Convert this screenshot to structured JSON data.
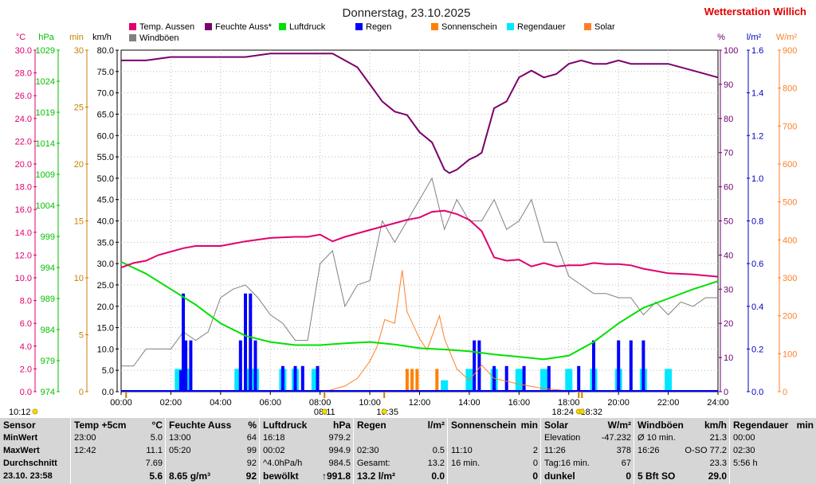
{
  "header": {
    "title": "Donnerstag, 23.10.2025",
    "brand": "Wetterstation Willich"
  },
  "legend": [
    {
      "name": "Temp. Aussen",
      "color": "#e0006e"
    },
    {
      "name": "Feuchte Auss*",
      "color": "#7a006e"
    },
    {
      "name": "Luftdruck",
      "color": "#00e000"
    },
    {
      "name": "Regen",
      "color": "#0000ff"
    },
    {
      "name": "Sonnenschein",
      "color": "#ff8000"
    },
    {
      "name": "Regendauer",
      "color": "#00e8ff"
    },
    {
      "name": "Solar",
      "color": "#ff7f27"
    },
    {
      "name": "Windböen",
      "color": "#808080"
    }
  ],
  "axes_left": [
    {
      "unit": "°C",
      "color": "#e0006e",
      "ticks": [
        "0.0",
        "2.0",
        "4.0",
        "6.0",
        "8.0",
        "10.0",
        "12.0",
        "14.0",
        "16.0",
        "18.0",
        "20.0",
        "22.0",
        "24.0",
        "26.0",
        "28.0",
        "30.0"
      ],
      "min": 0,
      "max": 30
    },
    {
      "unit": "hPa",
      "color": "#00c000",
      "ticks": [
        "974",
        "979",
        "984",
        "989",
        "994",
        "999",
        "1004",
        "1009",
        "1014",
        "1019",
        "1024",
        "1029"
      ],
      "min": 974,
      "max": 1029
    },
    {
      "unit": "min",
      "color": "#c88000",
      "ticks": [
        "0",
        "5",
        "10",
        "15",
        "20",
        "25",
        "30"
      ],
      "min": 0,
      "max": 30
    },
    {
      "unit": "km/h",
      "color": "#000000",
      "ticks": [
        "0.0",
        "5.0",
        "10.0",
        "15.0",
        "20.0",
        "25.0",
        "30.0",
        "35.0",
        "40.0",
        "45.0",
        "50.0",
        "55.0",
        "60.0",
        "65.0",
        "70.0",
        "75.0",
        "80.0"
      ],
      "min": 0,
      "max": 80
    }
  ],
  "axes_right": [
    {
      "unit": "%",
      "color": "#6a006a",
      "ticks": [
        "0",
        "10",
        "20",
        "30",
        "40",
        "50",
        "60",
        "70",
        "80",
        "90",
        "100"
      ],
      "min": 0,
      "max": 100
    },
    {
      "unit": "l/m²",
      "color": "#0000c0",
      "ticks": [
        "0.0",
        "0.2",
        "0.4",
        "0.6",
        "0.8",
        "1.0",
        "1.2",
        "1.4",
        "1.6"
      ],
      "min": 0,
      "max": 1.6
    },
    {
      "unit": "W/m²",
      "color": "#ff7f27",
      "ticks": [
        "0",
        "100",
        "200",
        "300",
        "400",
        "500",
        "600",
        "700",
        "800",
        "900"
      ],
      "min": 0,
      "max": 900
    }
  ],
  "time_ticks": [
    "00:00",
    "02:00",
    "04:00",
    "06:00",
    "08:00",
    "10:00",
    "12:00",
    "14:00",
    "16:00",
    "18:00",
    "20:00",
    "22:00",
    "24:00"
  ],
  "time_markers": [
    {
      "text": "10:12",
      "h": 0.2
    },
    {
      "text": "08:11",
      "h": 8.18
    },
    {
      "text": "10:35",
      "h": 10.58
    },
    {
      "text": "18:24",
      "h": 18.4
    },
    {
      "text": "18:32",
      "h": 18.53
    }
  ],
  "chart_data": {
    "type": "line",
    "title": "Donnerstag, 23.10.2025",
    "x_unit": "hour of day",
    "xlim": [
      0,
      24
    ],
    "series": [
      {
        "name": "Temp. Aussen",
        "unit": "°C",
        "points": [
          [
            0,
            10.9
          ],
          [
            0.5,
            11.3
          ],
          [
            1,
            11.5
          ],
          [
            1.5,
            12.0
          ],
          [
            2,
            12.3
          ],
          [
            2.5,
            12.6
          ],
          [
            3,
            12.8
          ],
          [
            4,
            12.8
          ],
          [
            4.5,
            13.0
          ],
          [
            5,
            13.2
          ],
          [
            6,
            13.5
          ],
          [
            7,
            13.6
          ],
          [
            7.5,
            13.6
          ],
          [
            8,
            13.8
          ],
          [
            8.5,
            13.2
          ],
          [
            9,
            13.6
          ],
          [
            10,
            14.2
          ],
          [
            11,
            14.8
          ],
          [
            11.5,
            15.1
          ],
          [
            12,
            15.3
          ],
          [
            12.5,
            15.8
          ],
          [
            13,
            15.9
          ],
          [
            13.5,
            15.6
          ],
          [
            14,
            15.1
          ],
          [
            14.5,
            14.1
          ],
          [
            15,
            11.8
          ],
          [
            15.5,
            11.5
          ],
          [
            16,
            11.6
          ],
          [
            16.5,
            11.0
          ],
          [
            17,
            11.3
          ],
          [
            17.5,
            11.0
          ],
          [
            18,
            11.1
          ],
          [
            18.5,
            11.1
          ],
          [
            19,
            11.3
          ],
          [
            19.5,
            11.2
          ],
          [
            20,
            11.2
          ],
          [
            20.5,
            11.1
          ],
          [
            21,
            10.8
          ],
          [
            21.5,
            10.6
          ],
          [
            22,
            10.4
          ],
          [
            23,
            10.3
          ],
          [
            24,
            10.1
          ]
        ]
      },
      {
        "name": "Feuchte Auss*",
        "unit": "%",
        "points": [
          [
            0,
            97
          ],
          [
            1,
            97
          ],
          [
            2,
            98
          ],
          [
            3,
            98
          ],
          [
            4,
            98
          ],
          [
            5,
            98
          ],
          [
            6,
            99
          ],
          [
            7,
            99
          ],
          [
            8,
            99
          ],
          [
            8.5,
            99
          ],
          [
            9,
            97
          ],
          [
            9.5,
            95
          ],
          [
            10,
            90
          ],
          [
            10.5,
            85
          ],
          [
            11,
            82
          ],
          [
            11.5,
            81
          ],
          [
            12,
            76
          ],
          [
            12.5,
            73
          ],
          [
            13,
            65
          ],
          [
            13.2,
            64
          ],
          [
            13.5,
            65
          ],
          [
            14,
            68
          ],
          [
            14.3,
            69
          ],
          [
            14.5,
            70
          ],
          [
            15,
            83
          ],
          [
            15.5,
            85
          ],
          [
            16,
            92
          ],
          [
            16.5,
            94
          ],
          [
            17,
            92
          ],
          [
            17.5,
            93
          ],
          [
            18,
            96
          ],
          [
            18.5,
            97
          ],
          [
            19,
            96
          ],
          [
            19.5,
            96
          ],
          [
            20,
            97
          ],
          [
            20.5,
            96
          ],
          [
            21,
            96
          ],
          [
            22,
            96
          ],
          [
            23,
            94
          ],
          [
            24,
            92
          ]
        ]
      },
      {
        "name": "Luftdruck",
        "unit": "hPa",
        "points": [
          [
            0,
            994.9
          ],
          [
            1,
            993.0
          ],
          [
            2,
            990.5
          ],
          [
            3,
            988.0
          ],
          [
            4,
            985.0
          ],
          [
            5,
            983.0
          ],
          [
            6,
            982.0
          ],
          [
            7,
            981.5
          ],
          [
            8,
            981.5
          ],
          [
            9,
            981.8
          ],
          [
            10,
            982.0
          ],
          [
            11,
            981.6
          ],
          [
            12,
            981.0
          ],
          [
            13,
            980.8
          ],
          [
            14,
            980.5
          ],
          [
            15,
            980.0
          ],
          [
            16,
            979.6
          ],
          [
            17,
            979.2
          ],
          [
            18,
            979.8
          ],
          [
            19,
            982.0
          ],
          [
            20,
            985.0
          ],
          [
            21,
            987.5
          ],
          [
            22,
            989.0
          ],
          [
            23,
            990.5
          ],
          [
            24,
            991.8
          ]
        ]
      },
      {
        "name": "Regen",
        "unit": "l/m²",
        "type": "bar",
        "points": [
          [
            2.4,
            0.1
          ],
          [
            2.5,
            0.46
          ],
          [
            2.6,
            0.24
          ],
          [
            2.8,
            0.24
          ],
          [
            4.8,
            0.24
          ],
          [
            5.0,
            0.46
          ],
          [
            5.2,
            0.46
          ],
          [
            5.4,
            0.24
          ],
          [
            6.5,
            0.12
          ],
          [
            7.0,
            0.12
          ],
          [
            7.3,
            0.12
          ],
          [
            7.9,
            0.12
          ],
          [
            14.2,
            0.24
          ],
          [
            14.4,
            0.24
          ],
          [
            15.0,
            0.12
          ],
          [
            15.5,
            0.12
          ],
          [
            16.2,
            0.12
          ],
          [
            17.2,
            0.12
          ],
          [
            18.4,
            0.12
          ],
          [
            19.0,
            0.24
          ],
          [
            20.0,
            0.24
          ],
          [
            20.5,
            0.24
          ],
          [
            21.0,
            0.24
          ]
        ]
      },
      {
        "name": "Sonnenschein",
        "unit": "min",
        "type": "bar",
        "points": [
          [
            11.5,
            2
          ],
          [
            11.7,
            2
          ],
          [
            11.9,
            2
          ],
          [
            12.7,
            2
          ],
          [
            15.0,
            1
          ]
        ]
      },
      {
        "name": "Regendauer",
        "unit": "min",
        "type": "bar",
        "points": [
          [
            2.3,
            2
          ],
          [
            2.7,
            2
          ],
          [
            4.7,
            2
          ],
          [
            5.2,
            2
          ],
          [
            5.4,
            2
          ],
          [
            6.5,
            2
          ],
          [
            7.0,
            2
          ],
          [
            7.8,
            2
          ],
          [
            13.0,
            1
          ],
          [
            14.0,
            2
          ],
          [
            15.0,
            2
          ],
          [
            16.0,
            2
          ],
          [
            17.0,
            2
          ],
          [
            18.0,
            2
          ],
          [
            19.0,
            2
          ],
          [
            20.0,
            2
          ],
          [
            21.0,
            2
          ],
          [
            22.0,
            2
          ]
        ]
      },
      {
        "name": "Solar",
        "unit": "W/m²",
        "points": [
          [
            8.2,
            0
          ],
          [
            9,
            15
          ],
          [
            9.5,
            35
          ],
          [
            10,
            80
          ],
          [
            10.3,
            120
          ],
          [
            10.6,
            190
          ],
          [
            11,
            180
          ],
          [
            11.3,
            320
          ],
          [
            11.5,
            210
          ],
          [
            12,
            140
          ],
          [
            12.3,
            110
          ],
          [
            12.8,
            200
          ],
          [
            13,
            140
          ],
          [
            13.5,
            60
          ],
          [
            14,
            30
          ],
          [
            14.5,
            70
          ],
          [
            15,
            35
          ],
          [
            16,
            20
          ],
          [
            17,
            8
          ],
          [
            18.4,
            0
          ]
        ]
      },
      {
        "name": "Windböen",
        "unit": "km/h",
        "points": [
          [
            0,
            6
          ],
          [
            0.5,
            6
          ],
          [
            1,
            10
          ],
          [
            1.5,
            10
          ],
          [
            2,
            10
          ],
          [
            2.5,
            14
          ],
          [
            3,
            12
          ],
          [
            3.5,
            14
          ],
          [
            4,
            22
          ],
          [
            4.5,
            24
          ],
          [
            5,
            25
          ],
          [
            5.5,
            22
          ],
          [
            6,
            18
          ],
          [
            6.5,
            16
          ],
          [
            7,
            12
          ],
          [
            7.5,
            12
          ],
          [
            8,
            30
          ],
          [
            8.5,
            33
          ],
          [
            9,
            20
          ],
          [
            9.5,
            25
          ],
          [
            10,
            26
          ],
          [
            10.5,
            40
          ],
          [
            11,
            35
          ],
          [
            11.5,
            40
          ],
          [
            12,
            45
          ],
          [
            12.5,
            50
          ],
          [
            13,
            38
          ],
          [
            13.5,
            45
          ],
          [
            14,
            40
          ],
          [
            14.5,
            40
          ],
          [
            15,
            45
          ],
          [
            15.5,
            38
          ],
          [
            16,
            40
          ],
          [
            16.5,
            45
          ],
          [
            17,
            35
          ],
          [
            17.5,
            35
          ],
          [
            18,
            27
          ],
          [
            18.5,
            25
          ],
          [
            19,
            23
          ],
          [
            19.5,
            23
          ],
          [
            20,
            22
          ],
          [
            20.5,
            22
          ],
          [
            21,
            18
          ],
          [
            21.5,
            21
          ],
          [
            22,
            18
          ],
          [
            22.5,
            21
          ],
          [
            23,
            20
          ],
          [
            23.5,
            22
          ],
          [
            24,
            22
          ]
        ]
      }
    ]
  },
  "table": [
    {
      "header": [
        "Sensor",
        ""
      ],
      "rows": [
        [
          "MinWert",
          ""
        ],
        [
          "MaxWert",
          ""
        ],
        [
          "Durchschnitt",
          ""
        ],
        [
          "23.10. 23:58",
          ""
        ]
      ]
    },
    {
      "header": [
        "Temp +5cm",
        "°C"
      ],
      "rows": [
        [
          "23:00",
          "5.0"
        ],
        [
          "12:42",
          "11.1"
        ],
        [
          "",
          "7.69"
        ],
        [
          "",
          "5.6"
        ]
      ]
    },
    {
      "header": [
        "Feuchte Auss",
        "%"
      ],
      "rows": [
        [
          "13:00",
          "64"
        ],
        [
          "05:20",
          "99"
        ],
        [
          "",
          "92"
        ],
        [
          "8.65 g/m³",
          "92"
        ]
      ]
    },
    {
      "header": [
        "Luftdruck",
        "hPa"
      ],
      "rows": [
        [
          "16:18",
          "979.2"
        ],
        [
          "00:02",
          "994.9"
        ],
        [
          "^4.0hPa/h",
          "984.5"
        ],
        [
          "bewölkt",
          "↑991.8"
        ]
      ]
    },
    {
      "header": [
        "Regen",
        "l/m²"
      ],
      "rows": [
        [
          "",
          ""
        ],
        [
          "02:30",
          "0.5"
        ],
        [
          "Gesamt:",
          "13.2"
        ],
        [
          "13.2 l/m²",
          "0.0"
        ]
      ]
    },
    {
      "header": [
        "Sonnenschein",
        "min"
      ],
      "rows": [
        [
          "",
          ""
        ],
        [
          "11:10",
          "2"
        ],
        [
          "16 min.",
          "0"
        ],
        [
          "",
          "0"
        ]
      ]
    },
    {
      "header": [
        "Solar",
        "W/m²"
      ],
      "rows": [
        [
          "Elevation",
          "-47.232"
        ],
        [
          "11:26",
          "378"
        ],
        [
          "Tag:16 min.",
          "67"
        ],
        [
          "dunkel",
          "0"
        ]
      ]
    },
    {
      "header": [
        "Windböen",
        "km/h"
      ],
      "rows": [
        [
          "Ø 10 min.",
          "21.3"
        ],
        [
          "16:26",
          "O-SO 77.2"
        ],
        [
          "",
          "23.3"
        ],
        [
          "5 Bft SO",
          "29.0"
        ]
      ]
    },
    {
      "header": [
        "Regendauer",
        "min"
      ],
      "rows": [
        [
          "00:00",
          ""
        ],
        [
          "02:30",
          ""
        ],
        [
          "5:56 h",
          ""
        ],
        [
          "",
          ""
        ]
      ]
    }
  ]
}
